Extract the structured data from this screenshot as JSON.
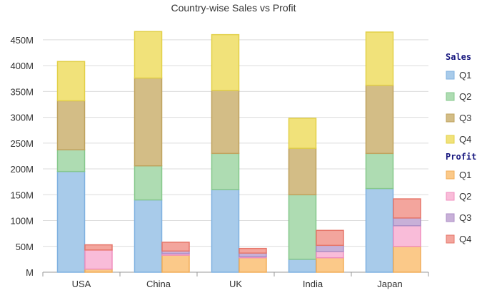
{
  "chart_data": {
    "type": "bar",
    "title": "Country-wise Sales vs Profit",
    "categories": [
      "USA",
      "China",
      "UK",
      "India",
      "Japan"
    ],
    "y_ticks": [
      "M",
      "50M",
      "100M",
      "150M",
      "200M",
      "250M",
      "300M",
      "350M",
      "400M",
      "450M"
    ],
    "ylim": [
      0,
      465
    ],
    "y_unit": "M",
    "stacks": [
      {
        "group": "Sales",
        "series": [
          {
            "name": "Q1",
            "color": "#a8cbea",
            "stroke": "#7fb1e0",
            "values": [
              195,
              140,
              160,
              25,
              162
            ]
          },
          {
            "name": "Q2",
            "color": "#aedcb2",
            "stroke": "#86c88c",
            "values": [
              42,
              66,
              70,
              125,
              68
            ]
          },
          {
            "name": "Q3",
            "color": "#d3bd86",
            "stroke": "#bfa35e",
            "values": [
              95,
              170,
              122,
              90,
              132
            ]
          },
          {
            "name": "Q4",
            "color": "#f1e27a",
            "stroke": "#e2d048",
            "values": [
              76,
              90,
              108,
              58,
              103
            ]
          }
        ]
      },
      {
        "group": "Profit",
        "series": [
          {
            "name": "Q1",
            "color": "#fbc989",
            "stroke": "#f2ad59",
            "values": [
              6,
              33,
              28,
              28,
              50
            ]
          },
          {
            "name": "Q2",
            "color": "#f9bcd9",
            "stroke": "#f08fbf",
            "values": [
              37,
              3,
              2,
              12,
              40
            ]
          },
          {
            "name": "Q3",
            "color": "#c8b0d8",
            "stroke": "#ad8fc6",
            "values": [
              0,
              5,
              7,
              12,
              15
            ]
          },
          {
            "name": "Q4",
            "color": "#f3a59d",
            "stroke": "#e6766a",
            "values": [
              10,
              17,
              9,
              29,
              37
            ]
          }
        ]
      }
    ],
    "grid": true,
    "legend_position": "right"
  }
}
